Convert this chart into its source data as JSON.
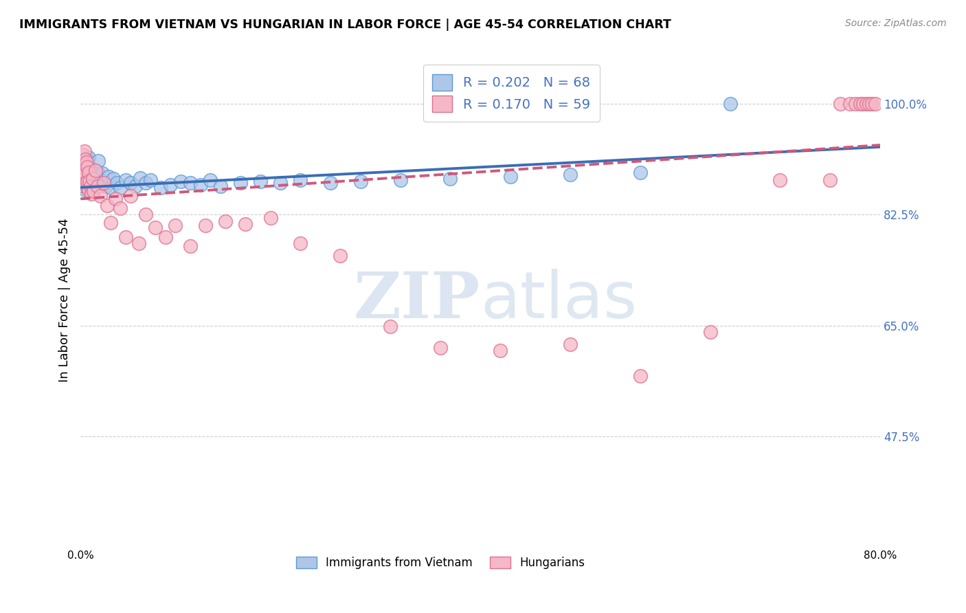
{
  "title": "IMMIGRANTS FROM VIETNAM VS HUNGARIAN IN LABOR FORCE | AGE 45-54 CORRELATION CHART",
  "source": "Source: ZipAtlas.com",
  "ylabel": "In Labor Force | Age 45-54",
  "yticks_labels": [
    "100.0%",
    "82.5%",
    "65.0%",
    "47.5%"
  ],
  "ytick_vals": [
    1.0,
    0.825,
    0.65,
    0.475
  ],
  "xlim": [
    0.0,
    0.8
  ],
  "ylim": [
    0.3,
    1.08
  ],
  "legend_r_blue": "R = 0.202",
  "legend_n_blue": "N = 68",
  "legend_r_pink": "R = 0.170",
  "legend_n_pink": "N = 59",
  "blue_fill": "#AEC6E8",
  "blue_edge": "#5B9BD5",
  "pink_fill": "#F4B8C8",
  "pink_edge": "#E07090",
  "trend_blue": "#3A6DB5",
  "trend_pink": "#D05878",
  "watermark_zip": "ZIP",
  "watermark_atlas": "atlas",
  "vietnam_x": [
    0.001,
    0.002,
    0.002,
    0.002,
    0.003,
    0.003,
    0.003,
    0.004,
    0.004,
    0.004,
    0.005,
    0.005,
    0.005,
    0.006,
    0.006,
    0.006,
    0.007,
    0.007,
    0.007,
    0.008,
    0.008,
    0.008,
    0.009,
    0.009,
    0.01,
    0.01,
    0.011,
    0.011,
    0.012,
    0.013,
    0.014,
    0.015,
    0.016,
    0.017,
    0.018,
    0.02,
    0.022,
    0.025,
    0.028,
    0.03,
    0.033,
    0.036,
    0.04,
    0.045,
    0.05,
    0.055,
    0.06,
    0.065,
    0.07,
    0.08,
    0.09,
    0.1,
    0.11,
    0.12,
    0.13,
    0.14,
    0.16,
    0.18,
    0.2,
    0.22,
    0.25,
    0.28,
    0.32,
    0.37,
    0.43,
    0.49,
    0.56,
    0.65
  ],
  "vietnam_y": [
    0.875,
    0.88,
    0.895,
    0.91,
    0.87,
    0.885,
    0.9,
    0.875,
    0.89,
    0.91,
    0.865,
    0.885,
    0.905,
    0.87,
    0.888,
    0.908,
    0.872,
    0.89,
    0.912,
    0.875,
    0.892,
    0.915,
    0.878,
    0.895,
    0.872,
    0.895,
    0.878,
    0.898,
    0.875,
    0.893,
    0.88,
    0.895,
    0.87,
    0.892,
    0.91,
    0.875,
    0.89,
    0.87,
    0.885,
    0.868,
    0.882,
    0.875,
    0.868,
    0.88,
    0.875,
    0.87,
    0.883,
    0.875,
    0.88,
    0.868,
    0.872,
    0.878,
    0.875,
    0.872,
    0.88,
    0.87,
    0.875,
    0.878,
    0.875,
    0.88,
    0.875,
    0.878,
    0.88,
    0.882,
    0.885,
    0.888,
    0.892,
    1.0
  ],
  "hungarian_x": [
    0.001,
    0.002,
    0.002,
    0.003,
    0.003,
    0.004,
    0.004,
    0.005,
    0.005,
    0.006,
    0.006,
    0.007,
    0.007,
    0.008,
    0.008,
    0.009,
    0.01,
    0.011,
    0.012,
    0.013,
    0.015,
    0.017,
    0.02,
    0.023,
    0.027,
    0.03,
    0.035,
    0.04,
    0.045,
    0.05,
    0.058,
    0.065,
    0.075,
    0.085,
    0.095,
    0.11,
    0.125,
    0.145,
    0.165,
    0.19,
    0.22,
    0.26,
    0.31,
    0.36,
    0.42,
    0.49,
    0.56,
    0.63,
    0.7,
    0.75,
    0.76,
    0.77,
    0.775,
    0.78,
    0.783,
    0.786,
    0.789,
    0.792,
    0.795
  ],
  "hungarian_y": [
    0.88,
    0.895,
    0.92,
    0.87,
    0.905,
    0.888,
    0.925,
    0.875,
    0.912,
    0.87,
    0.908,
    0.878,
    0.9,
    0.865,
    0.892,
    0.878,
    0.87,
    0.858,
    0.882,
    0.862,
    0.895,
    0.87,
    0.855,
    0.875,
    0.84,
    0.812,
    0.85,
    0.835,
    0.79,
    0.855,
    0.78,
    0.825,
    0.805,
    0.79,
    0.808,
    0.775,
    0.808,
    0.815,
    0.81,
    0.82,
    0.78,
    0.76,
    0.648,
    0.615,
    0.61,
    0.62,
    0.57,
    0.64,
    0.88,
    0.88,
    1.0,
    1.0,
    1.0,
    1.0,
    1.0,
    1.0,
    1.0,
    1.0,
    1.0
  ]
}
